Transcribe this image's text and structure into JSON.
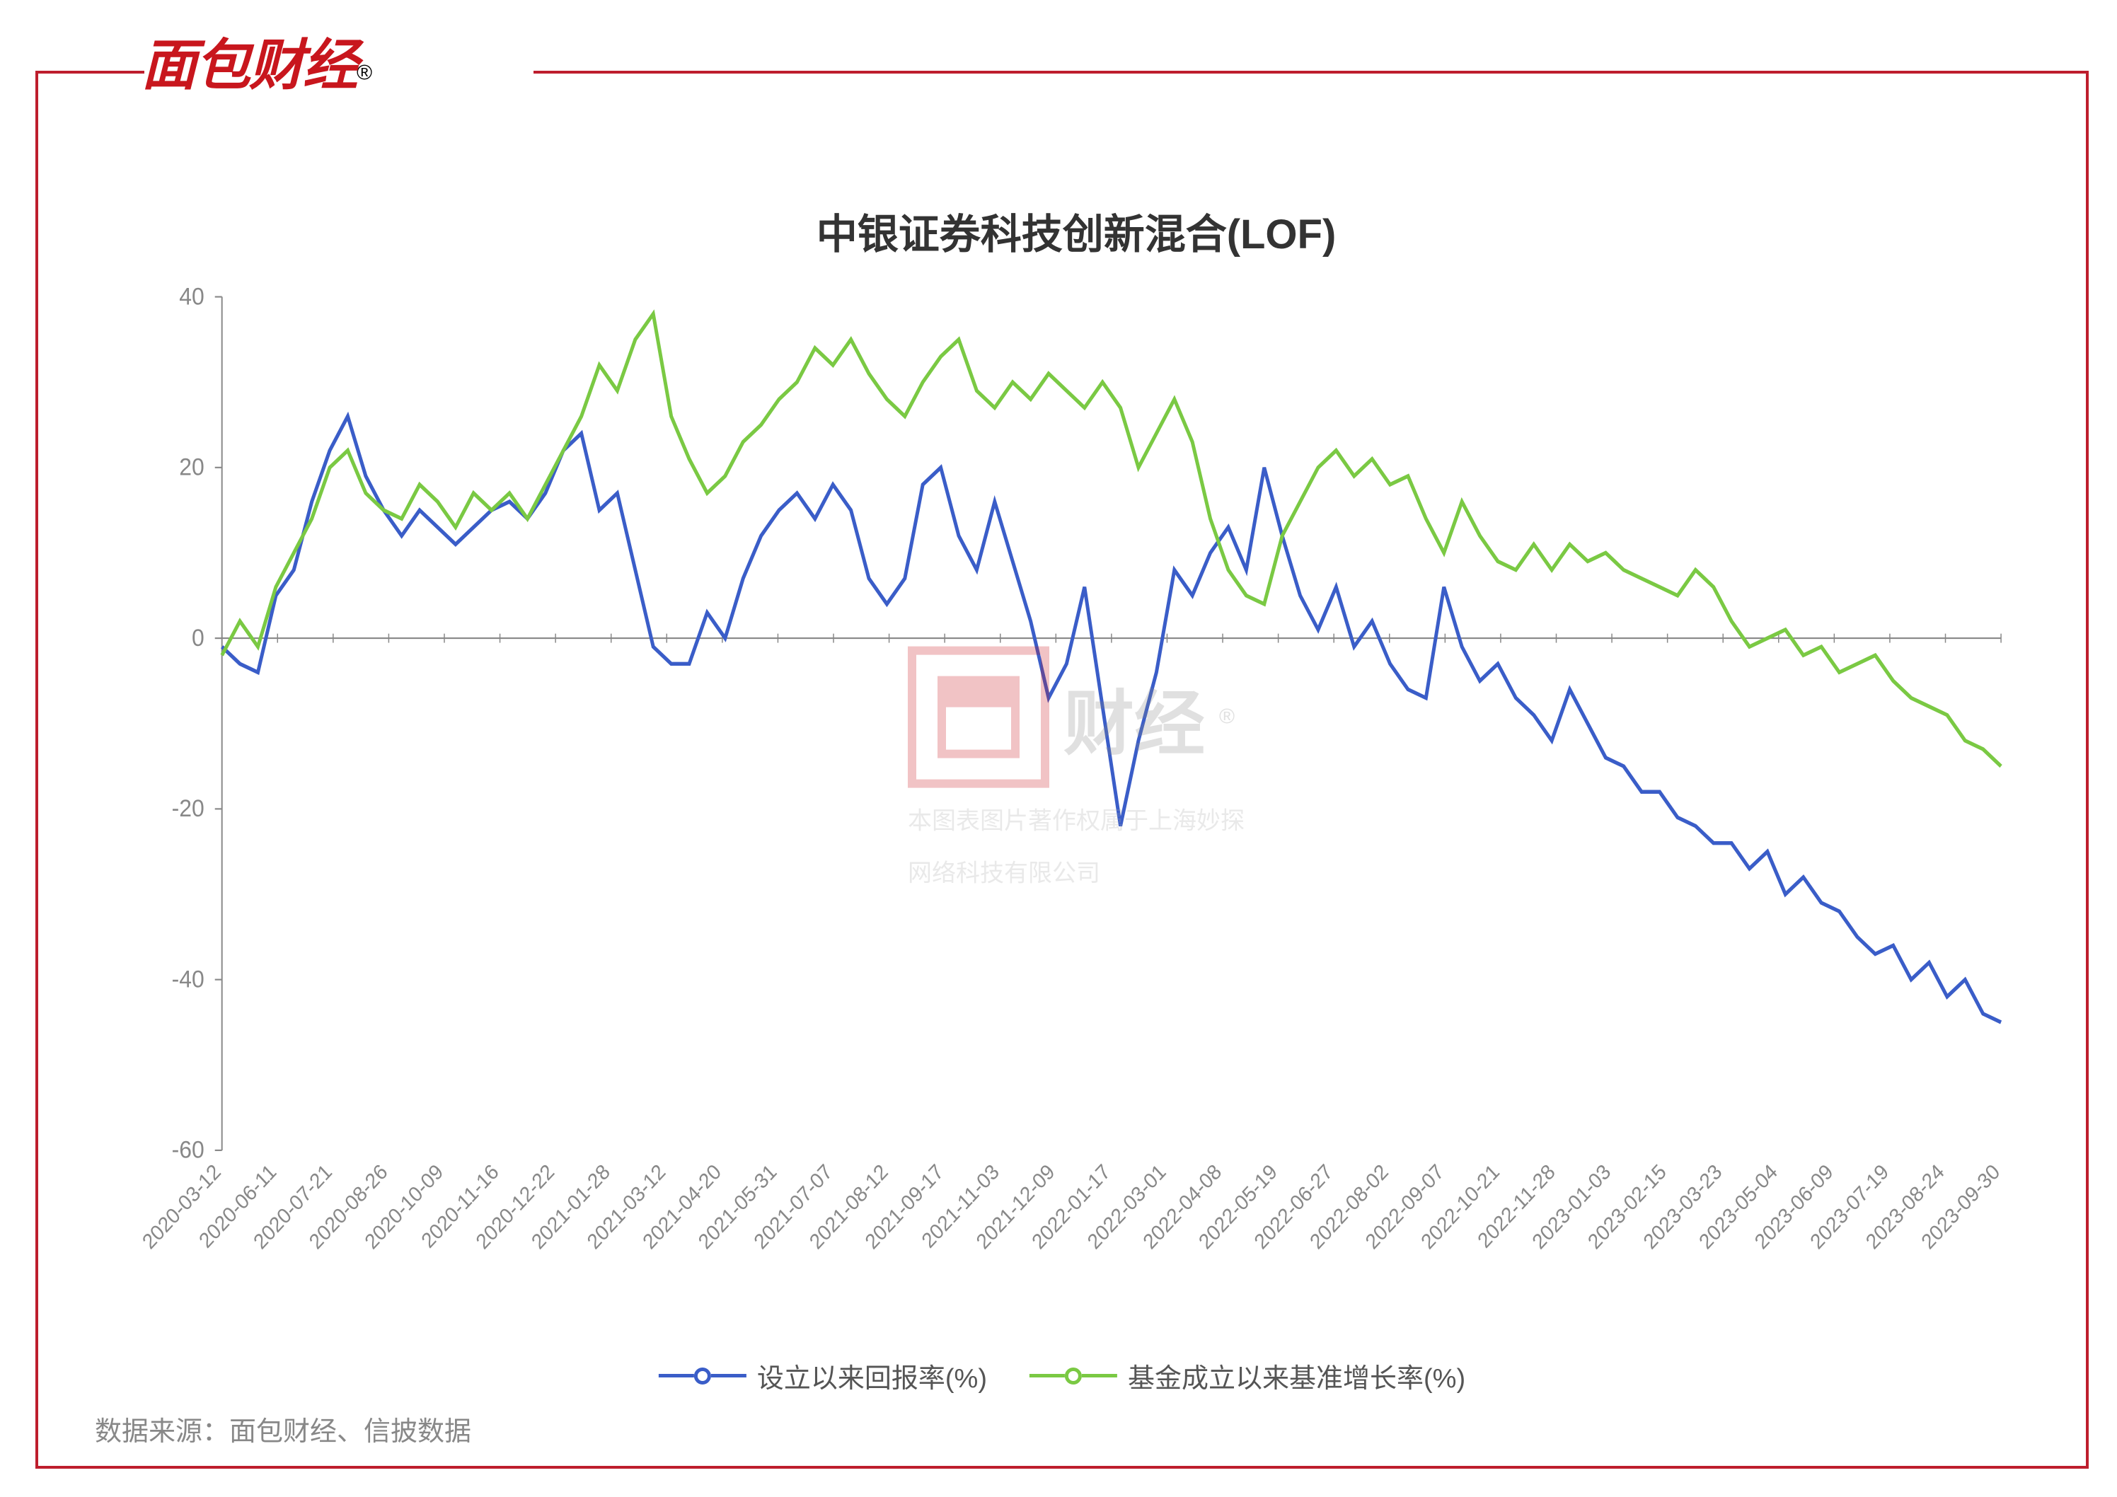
{
  "logo_text": "面包财经",
  "chart": {
    "type": "line",
    "title": "中银证券科技创新混合(LOF)",
    "title_fontsize": 58,
    "ylim": [
      -60,
      40
    ],
    "yticks": [
      -60,
      -40,
      -20,
      0,
      20,
      40
    ],
    "ytick_step": 20,
    "background_color": "#ffffff",
    "grid_color": "#d0d0d0",
    "axis_color": "#888888",
    "line_width": 5,
    "marker_style": "circle",
    "x_labels": [
      "2020-03-12",
      "2020-06-11",
      "2020-07-21",
      "2020-08-26",
      "2020-10-09",
      "2020-11-16",
      "2020-12-22",
      "2021-01-28",
      "2021-03-12",
      "2021-04-20",
      "2021-05-31",
      "2021-07-07",
      "2021-08-12",
      "2021-09-17",
      "2021-11-03",
      "2021-12-09",
      "2022-01-17",
      "2022-03-01",
      "2022-04-08",
      "2022-05-19",
      "2022-06-27",
      "2022-08-02",
      "2022-09-07",
      "2022-10-21",
      "2022-11-28",
      "2023-01-03",
      "2023-02-15",
      "2023-03-23",
      "2023-05-04",
      "2023-06-09",
      "2023-07-19",
      "2023-08-24",
      "2023-09-30"
    ],
    "series": [
      {
        "name": "设立以来回报率(%)",
        "color": "#3a5dc8",
        "values": [
          -1,
          -3,
          -4,
          5,
          8,
          16,
          22,
          26,
          19,
          15,
          12,
          15,
          13,
          11,
          13,
          15,
          16,
          14,
          17,
          22,
          24,
          15,
          17,
          8,
          -1,
          -3,
          -3,
          3,
          0,
          7,
          12,
          15,
          17,
          14,
          18,
          15,
          7,
          4,
          7,
          18,
          20,
          12,
          8,
          16,
          9,
          2,
          -7,
          -3,
          6,
          -8,
          -22,
          -12,
          -4,
          8,
          5,
          10,
          13,
          8,
          20,
          12,
          5,
          1,
          6,
          -1,
          2,
          -3,
          -6,
          -7,
          6,
          -1,
          -5,
          -3,
          -7,
          -9,
          -12,
          -6,
          -10,
          -14,
          -15,
          -18,
          -18,
          -21,
          -22,
          -24,
          -24,
          -27,
          -25,
          -30,
          -28,
          -31,
          -32,
          -35,
          -37,
          -36,
          -40,
          -38,
          -42,
          -40,
          -44,
          -45
        ]
      },
      {
        "name": "基金成立以来基准增长率(%)",
        "color": "#7ac943",
        "values": [
          -2,
          2,
          -1,
          6,
          10,
          14,
          20,
          22,
          17,
          15,
          14,
          18,
          16,
          13,
          17,
          15,
          17,
          14,
          18,
          22,
          26,
          32,
          29,
          35,
          38,
          26,
          21,
          17,
          19,
          23,
          25,
          28,
          30,
          34,
          32,
          35,
          31,
          28,
          26,
          30,
          33,
          35,
          29,
          27,
          30,
          28,
          31,
          29,
          27,
          30,
          27,
          20,
          24,
          28,
          23,
          14,
          8,
          5,
          4,
          12,
          16,
          20,
          22,
          19,
          21,
          18,
          19,
          14,
          10,
          16,
          12,
          9,
          8,
          11,
          8,
          11,
          9,
          10,
          8,
          7,
          6,
          5,
          8,
          6,
          2,
          -1,
          0,
          1,
          -2,
          -1,
          -4,
          -3,
          -2,
          -5,
          -7,
          -8,
          -9,
          -12,
          -13,
          -15
        ]
      }
    ]
  },
  "legend": {
    "items": [
      {
        "label": "设立以来回报率(%)",
        "color": "#3a5dc8"
      },
      {
        "label": "基金成立以来基准增长率(%)",
        "color": "#7ac943"
      }
    ]
  },
  "watermark": {
    "text": "财经",
    "caption_line1": "本图表图片著作权属于上海妙探",
    "caption_line2": "网络科技有限公司"
  },
  "source": "数据来源：面包财经、信披数据",
  "frame_color": "#be1e2d"
}
